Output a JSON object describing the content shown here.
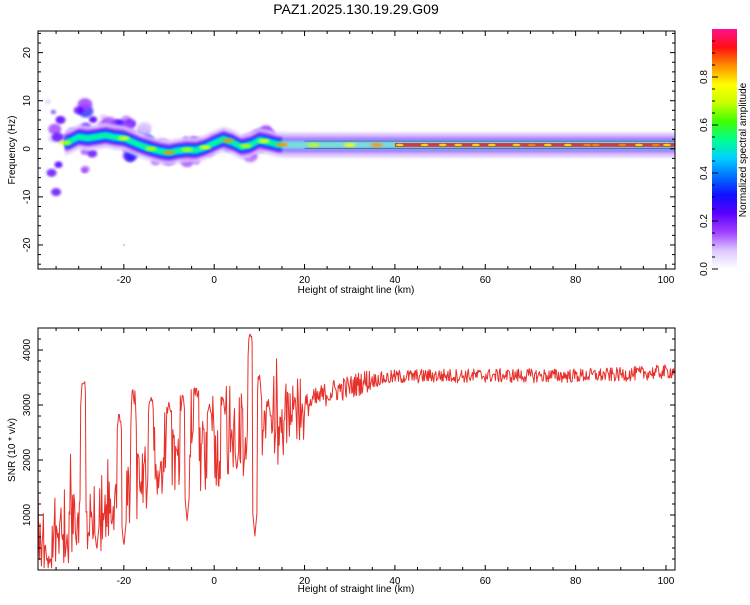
{
  "figure": {
    "title": "PAZ1.2025.130.19.29.G09"
  },
  "colors": {
    "snr_line": "#e8302a",
    "band_core": "#e0202a",
    "colormap": [
      "#ffffff",
      "#dcc8ff",
      "#a040ff",
      "#5a00ff",
      "#1010ff",
      "#0070ff",
      "#00d0ff",
      "#00ff90",
      "#40ff00",
      "#c8ff00",
      "#ffff00",
      "#ff9000",
      "#ff1010",
      "#ff1090"
    ]
  },
  "chart_data": [
    {
      "type": "heatmap",
      "title": "PAZ1.2025.130.19.29.G09",
      "xlabel": "Height of straight line (km)",
      "ylabel": "Frequency (Hz)",
      "xlim": [
        -39,
        102
      ],
      "ylim": [
        -25,
        24.5
      ],
      "xticks": [
        -20,
        0,
        20,
        40,
        60,
        80,
        100
      ],
      "yticks": [
        -20,
        -10,
        0,
        10,
        20
      ],
      "ridge": [
        [
          -36,
          2.8
        ],
        [
          -34,
          1.0
        ],
        [
          -32,
          1.5
        ],
        [
          -30,
          2.5
        ],
        [
          -28,
          2.2
        ],
        [
          -26,
          2.5
        ],
        [
          -24,
          2.8
        ],
        [
          -22,
          2.4
        ],
        [
          -20,
          2.2
        ],
        [
          -18,
          1.4
        ],
        [
          -16,
          0.6
        ],
        [
          -14,
          0.0
        ],
        [
          -12,
          -0.5
        ],
        [
          -10,
          -0.8
        ],
        [
          -8,
          -0.4
        ],
        [
          -6,
          -0.2
        ],
        [
          -4,
          -0.3
        ],
        [
          -2,
          0.3
        ],
        [
          0,
          1.2
        ],
        [
          2,
          2.0
        ],
        [
          4,
          1.4
        ],
        [
          6,
          0.4
        ],
        [
          8,
          0.8
        ],
        [
          10,
          1.8
        ],
        [
          12,
          1.4
        ],
        [
          14,
          0.9
        ],
        [
          16,
          0.8
        ],
        [
          20,
          0.8
        ],
        [
          30,
          0.8
        ],
        [
          40,
          0.8
        ],
        [
          60,
          0.8
        ],
        [
          80,
          0.8
        ],
        [
          102,
          0.8
        ]
      ],
      "colorbar": {
        "label": "Normalized spectral amplitude",
        "range": [
          0,
          1
        ],
        "ticks": [
          0.0,
          0.2,
          0.4,
          0.6,
          0.8
        ],
        "tick_labels": [
          "0.0",
          "0.2",
          "0.4",
          "0.6",
          "0.8"
        ]
      }
    },
    {
      "type": "line",
      "xlabel": "Height of straight line (km)",
      "ylabel": "SNR (10 * v/v)",
      "xlim": [
        -39,
        102
      ],
      "ylim": [
        0,
        4400
      ],
      "xticks": [
        -20,
        0,
        20,
        40,
        60,
        80,
        100
      ],
      "yticks": [
        1000,
        2000,
        3000,
        4000
      ],
      "series": [
        {
          "envelope": [
            [
              -39,
              500
            ],
            [
              -36,
              500
            ],
            [
              -33,
              550
            ],
            [
              -30,
              800
            ],
            [
              -27,
              900
            ],
            [
              -24,
              1050
            ],
            [
              -21,
              1200
            ],
            [
              -18,
              1500
            ],
            [
              -15,
              1500
            ],
            [
              -12,
              1650
            ],
            [
              -9,
              1800
            ],
            [
              -6,
              1950
            ],
            [
              -3,
              2050
            ],
            [
              0,
              2100
            ],
            [
              3,
              2250
            ],
            [
              6,
              2300
            ],
            [
              9,
              2350
            ],
            [
              12,
              2500
            ],
            [
              15,
              2650
            ],
            [
              18,
              2850
            ],
            [
              21,
              3000
            ],
            [
              24,
              3150
            ],
            [
              27,
              3250
            ],
            [
              30,
              3300
            ],
            [
              33,
              3400
            ],
            [
              36,
              3450
            ],
            [
              40,
              3500
            ],
            [
              50,
              3520
            ],
            [
              60,
              3520
            ],
            [
              70,
              3520
            ],
            [
              80,
              3520
            ],
            [
              90,
              3540
            ],
            [
              102,
              3600
            ]
          ],
          "peaks": [
            [
              -29,
              3430
            ],
            [
              -21,
              2830
            ],
            [
              -18,
              3280
            ],
            [
              -14,
              3150
            ],
            [
              -10,
              3050
            ],
            [
              -7,
              3200
            ],
            [
              -4,
              3320
            ],
            [
              -1,
              3020
            ],
            [
              2,
              3150
            ],
            [
              8,
              4320
            ],
            [
              10,
              3550
            ],
            [
              12,
              3100
            ],
            [
              5,
              3250
            ]
          ],
          "dips": [
            [
              9,
              620
            ],
            [
              -37,
              160
            ],
            [
              -33,
              240
            ],
            [
              -26,
              350
            ],
            [
              -20,
              420
            ],
            [
              -6,
              900
            ],
            [
              5,
              1800
            ]
          ]
        }
      ]
    }
  ]
}
